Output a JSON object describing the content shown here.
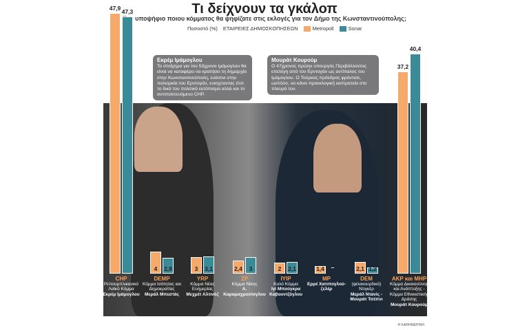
{
  "title": "Τι δείχνουν τα γκάλοπ",
  "subtitle": "Τον υποψήφιο ποιου κόμματος θα ψηφίζατε στις εκλογές για τον Δήμο της Κωνσταντινούπολης;",
  "legend": {
    "unit": "Ποσοστό (%)",
    "heading": "ΕΤΑΙΡΕΙΕΣ ΔΗΜΟΣΚΟΠΗΣΕΩΝ"
  },
  "bubbles": [
    {
      "name": "Εκρέμ Ιμάμογλου",
      "text": "Το στοίχημα για τον 53χρονο Ιμάμογλου θα είναι να καταφέρει να κρατήσει τη δημαρχία στην Κωνσταντινούπολη, ενάντια στην πολιορκία του Ερντογάν, ενισχύοντας έτσι το δικό του πολιτικό εκτόπισμα αλλά και το αντιπολιτευόμενο CHP."
    },
    {
      "name": "Μουράτ Κουρούμ",
      "text": "Ο 47χρονος πρώην υπουργός Περιβάλλοντος επελέγη από τον Ερντογάν ως αντίπαλος του Ιμάμογλου. Ο Τούρκος πρόεδρος φρόντισε, ωστόσο, να κάνει προεκλογική εκστρατεία στο πλευρό του."
    }
  ],
  "source": "Η ΚΑΘΗΜΕΡΙΝΗ",
  "chart_data": {
    "type": "bar",
    "title": "Τι δείχνουν τα γκάλοπ",
    "ylabel": "Ποσοστό (%)",
    "ylim": [
      0,
      48
    ],
    "grid": false,
    "legend_placement": "top",
    "categories": [
      {
        "party": "CHP",
        "desc": "Ρεπουμπλικανικό Λαϊκό Κόμμα",
        "candidate": "Εκρέμ Ιμάμογλου"
      },
      {
        "party": "DEMP",
        "desc": "Κόμμα Ισότητας και Δημοκρατίας",
        "candidate": "Μεράλ Μπεστάς"
      },
      {
        "party": "YRP",
        "desc": "Κόμμα Νέας Ευημερίας",
        "candidate": "Μεχμέτ Αλτινόζ"
      },
      {
        "party": "ZP",
        "desc": "Κόμμα Νίκης",
        "candidate": "Α. Καραμαχμούτογλου"
      },
      {
        "party": "IYIP",
        "desc": "Καλό Κόμμα",
        "candidate": "Ιγί Μπούγκρα Καβουντζόγλου"
      },
      {
        "party": "MP",
        "desc": "",
        "candidate": "Ερρέ Χατιπογλού-ζελέρ"
      },
      {
        "party": "DEM",
        "desc": "(φιλοκουρδικό) Ντιγκέρ",
        "candidate": "Μεράλ Ντανίς - Μουράτ Τσέπνι"
      },
      {
        "party": "AKP και MHP",
        "desc": "Κόμμα Δικαιοσύνης και Ανάπτυξης - Κόμμα Εθνικιστικής Δράσης",
        "candidate": "Μουράτ Κουρούμ"
      }
    ],
    "series": [
      {
        "name": "Metropoll",
        "color": "#f5a96b",
        "values": [
          47.9,
          4,
          3,
          2.4,
          2,
          1.4,
          2.1,
          37.2
        ],
        "labels": [
          "47,9",
          "4",
          "3",
          "2,4",
          "2",
          "1,4",
          "2,1",
          "37,2"
        ]
      },
      {
        "name": "Sonar",
        "color": "#3b8a98",
        "values": [
          47.3,
          2.9,
          3.1,
          3,
          2.1,
          null,
          1.2,
          40.4
        ],
        "labels": [
          "47,3",
          "2,9",
          "3,1",
          "3",
          "2,1",
          "–",
          "1,2",
          "40,4"
        ]
      }
    ]
  }
}
